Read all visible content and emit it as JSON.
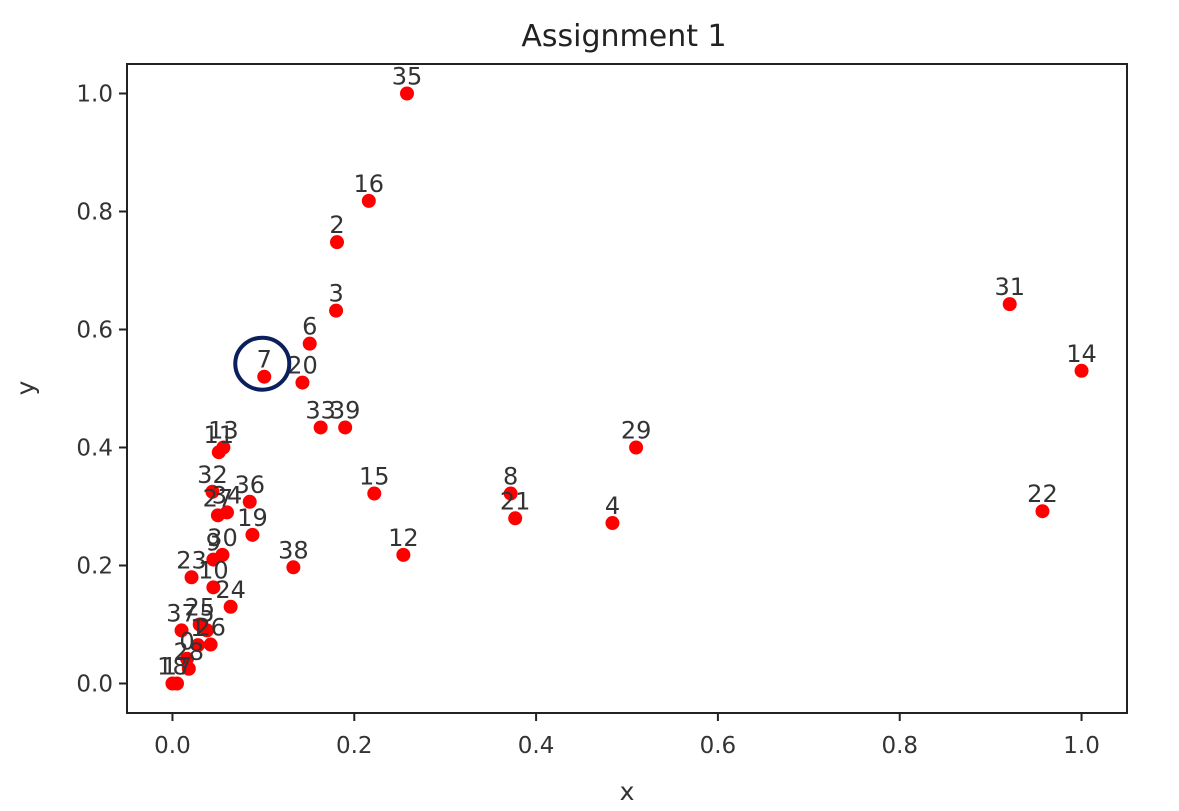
{
  "chart_data": {
    "type": "scatter",
    "title": "Assignment 1",
    "xlabel": "x",
    "ylabel": "y",
    "xlim": [
      -0.05,
      1.05
    ],
    "ylim": [
      -0.05,
      1.05
    ],
    "xticks": [
      "0.0",
      "0.2",
      "0.4",
      "0.6",
      "0.8",
      "1.0"
    ],
    "yticks": [
      "0.0",
      "0.2",
      "0.4",
      "0.6",
      "0.8",
      "1.0"
    ],
    "grid": false,
    "marker_color": "#ff0000",
    "highlight_color": "#0a1f5c",
    "highlighted_label": "7",
    "points": [
      {
        "label": "35",
        "x": 0.258,
        "y": 1.0
      },
      {
        "label": "16",
        "x": 0.216,
        "y": 0.818
      },
      {
        "label": "2",
        "x": 0.181,
        "y": 0.748
      },
      {
        "label": "3",
        "x": 0.18,
        "y": 0.632
      },
      {
        "label": "6",
        "x": 0.151,
        "y": 0.576
      },
      {
        "label": "7",
        "x": 0.101,
        "y": 0.52
      },
      {
        "label": "20",
        "x": 0.143,
        "y": 0.51
      },
      {
        "label": "33",
        "x": 0.163,
        "y": 0.434
      },
      {
        "label": "39",
        "x": 0.19,
        "y": 0.434
      },
      {
        "label": "11",
        "x": 0.051,
        "y": 0.392
      },
      {
        "label": "13",
        "x": 0.056,
        "y": 0.4
      },
      {
        "label": "32",
        "x": 0.044,
        "y": 0.325
      },
      {
        "label": "36",
        "x": 0.085,
        "y": 0.308
      },
      {
        "label": "27",
        "x": 0.05,
        "y": 0.285
      },
      {
        "label": "34",
        "x": 0.06,
        "y": 0.29
      },
      {
        "label": "19",
        "x": 0.088,
        "y": 0.252
      },
      {
        "label": "30",
        "x": 0.055,
        "y": 0.218
      },
      {
        "label": "23",
        "x": 0.021,
        "y": 0.18
      },
      {
        "label": "9",
        "x": 0.045,
        "y": 0.21
      },
      {
        "label": "10",
        "x": 0.045,
        "y": 0.163
      },
      {
        "label": "24",
        "x": 0.064,
        "y": 0.13
      },
      {
        "label": "38",
        "x": 0.133,
        "y": 0.197
      },
      {
        "label": "37",
        "x": 0.01,
        "y": 0.09
      },
      {
        "label": "25",
        "x": 0.03,
        "y": 0.1
      },
      {
        "label": "5",
        "x": 0.038,
        "y": 0.09
      },
      {
        "label": "26",
        "x": 0.042,
        "y": 0.066
      },
      {
        "label": "1",
        "x": 0.028,
        "y": 0.065
      },
      {
        "label": "0",
        "x": 0.016,
        "y": 0.042
      },
      {
        "label": "28",
        "x": 0.018,
        "y": 0.025
      },
      {
        "label": "17",
        "x": 0.005,
        "y": 0.0
      },
      {
        "label": "18",
        "x": 0.0,
        "y": 0.0
      },
      {
        "label": "15",
        "x": 0.222,
        "y": 0.322
      },
      {
        "label": "12",
        "x": 0.254,
        "y": 0.218
      },
      {
        "label": "8",
        "x": 0.372,
        "y": 0.322
      },
      {
        "label": "21",
        "x": 0.377,
        "y": 0.28
      },
      {
        "label": "4",
        "x": 0.484,
        "y": 0.272
      },
      {
        "label": "29",
        "x": 0.51,
        "y": 0.4
      },
      {
        "label": "31",
        "x": 0.921,
        "y": 0.643
      },
      {
        "label": "14",
        "x": 1.0,
        "y": 0.53
      },
      {
        "label": "22",
        "x": 0.957,
        "y": 0.292
      }
    ]
  }
}
